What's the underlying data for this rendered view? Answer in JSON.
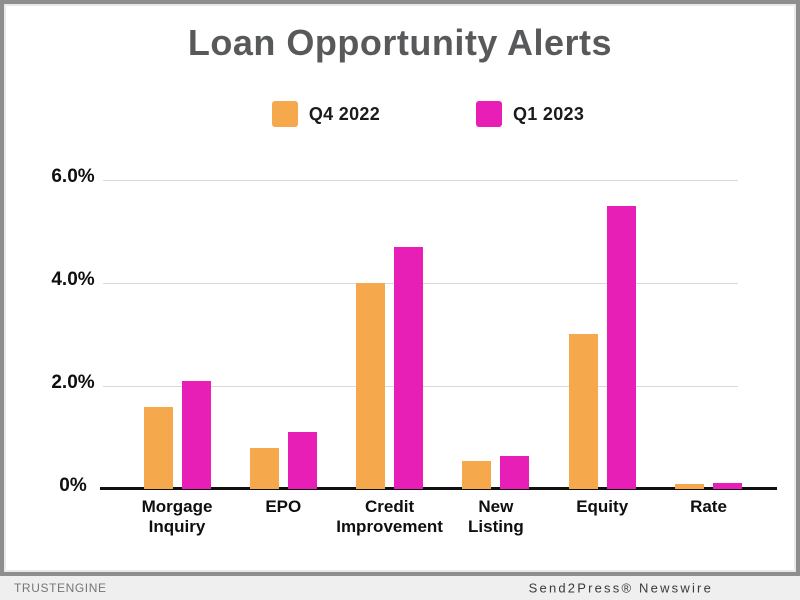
{
  "chart_data": {
    "type": "bar",
    "title": "Loan Opportunity Alerts",
    "categories": [
      "Morgage\nInquiry",
      "EPO",
      "Credit\nImprovement",
      "New\nListing",
      "Equity",
      "Rate"
    ],
    "series": [
      {
        "name": "Q4 2022",
        "color": "#F5A84C",
        "values": [
          1.6,
          0.8,
          4.0,
          0.55,
          3.0,
          0.1
        ]
      },
      {
        "name": "Q1 2023",
        "color": "#E71FB6",
        "values": [
          2.1,
          1.1,
          4.7,
          0.65,
          5.5,
          0.12
        ]
      }
    ],
    "xlabel": "",
    "ylabel": "",
    "y_ticks": [
      "6.0%",
      "4.0%",
      "2.0%",
      "0%"
    ],
    "y_tick_values": [
      6,
      4,
      2,
      0
    ],
    "ylim": [
      0,
      6.6
    ],
    "grid": true,
    "legend_position": "top-center"
  },
  "colors": {
    "title_text": "#58595B",
    "frame": "#8E8E8E",
    "gridline": "#D9D9D9",
    "axis": "#111111",
    "footer_background": "#EFEFEF"
  },
  "footer": {
    "left_text": "TRUSTENGINE",
    "right_text": "Send2Press® Newswire"
  }
}
